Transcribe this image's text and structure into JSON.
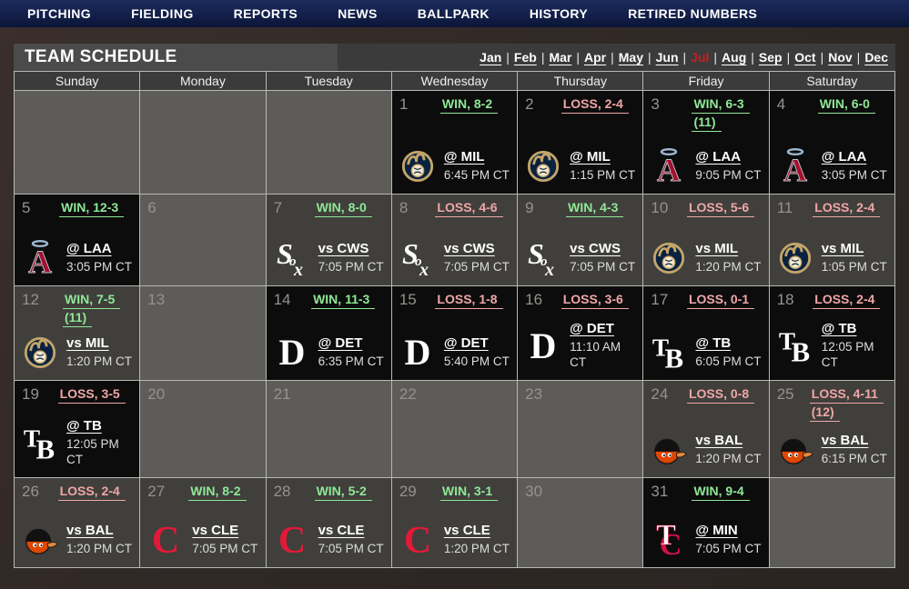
{
  "nav": {
    "items": [
      "PITCHING",
      "FIELDING",
      "REPORTS",
      "NEWS",
      "BALLPARK",
      "HISTORY",
      "RETIRED NUMBERS"
    ]
  },
  "schedule_header": {
    "title": "TEAM SCHEDULE",
    "months": [
      "Jan",
      "Feb",
      "Mar",
      "Apr",
      "May",
      "Jun",
      "Jul",
      "Aug",
      "Sep",
      "Oct",
      "Nov",
      "Dec"
    ],
    "active_month": "Jul",
    "separator": "|"
  },
  "colors": {
    "nav_bg": "#13204a",
    "win_text": "#8fe896",
    "loss_text": "#f0a6a6",
    "active_month": "#c32222",
    "away_cell_bg": "#0c0c0c",
    "home_cell_bg": "#403f3c",
    "empty_cell_bg": "#5d5c58"
  },
  "calendar": {
    "day_headers": [
      "Sunday",
      "Monday",
      "Tuesday",
      "Wednesday",
      "Thursday",
      "Friday",
      "Saturday"
    ],
    "weeks": [
      [
        {
          "day": ""
        },
        {
          "day": ""
        },
        {
          "day": ""
        },
        {
          "day": "1",
          "result": "WIN, 8-2",
          "result_type": "win",
          "team": "MIL",
          "opponent": "@ MIL",
          "time": "6:45 PM CT",
          "home": false
        },
        {
          "day": "2",
          "result": "LOSS, 2-4",
          "result_type": "loss",
          "team": "MIL",
          "opponent": "@ MIL",
          "time": "1:15 PM CT",
          "home": false
        },
        {
          "day": "3",
          "result": "WIN, 6-3",
          "extra": "(11)",
          "result_type": "win",
          "team": "LAA",
          "opponent": "@ LAA",
          "time": "9:05 PM CT",
          "home": false
        },
        {
          "day": "4",
          "result": "WIN, 6-0",
          "result_type": "win",
          "team": "LAA",
          "opponent": "@ LAA",
          "time": "3:05 PM CT",
          "home": false
        }
      ],
      [
        {
          "day": "5",
          "result": "WIN, 12-3",
          "result_type": "win",
          "team": "LAA",
          "opponent": "@ LAA",
          "time": "3:05 PM CT",
          "home": false
        },
        {
          "day": "6"
        },
        {
          "day": "7",
          "result": "WIN, 8-0",
          "result_type": "win",
          "team": "CWS",
          "opponent": "vs CWS",
          "time": "7:05 PM CT",
          "home": true
        },
        {
          "day": "8",
          "result": "LOSS, 4-6",
          "result_type": "loss",
          "team": "CWS",
          "opponent": "vs CWS",
          "time": "7:05 PM CT",
          "home": true
        },
        {
          "day": "9",
          "result": "WIN, 4-3",
          "result_type": "win",
          "team": "CWS",
          "opponent": "vs CWS",
          "time": "7:05 PM CT",
          "home": true
        },
        {
          "day": "10",
          "result": "LOSS, 5-6",
          "result_type": "loss",
          "team": "MIL",
          "opponent": "vs MIL",
          "time": "1:20 PM CT",
          "home": true
        },
        {
          "day": "11",
          "result": "LOSS, 2-4",
          "result_type": "loss",
          "team": "MIL",
          "opponent": "vs MIL",
          "time": "1:05 PM CT",
          "home": true
        }
      ],
      [
        {
          "day": "12",
          "result": "WIN, 7-5",
          "extra": "(11)",
          "result_type": "win",
          "team": "MIL",
          "opponent": "vs MIL",
          "time": "1:20 PM CT",
          "home": true
        },
        {
          "day": "13"
        },
        {
          "day": "14",
          "result": "WIN, 11-3",
          "result_type": "win",
          "team": "DET",
          "opponent": "@ DET",
          "time": "6:35 PM CT",
          "home": false
        },
        {
          "day": "15",
          "result": "LOSS, 1-8",
          "result_type": "loss",
          "team": "DET",
          "opponent": "@ DET",
          "time": "5:40 PM CT",
          "home": false
        },
        {
          "day": "16",
          "result": "LOSS, 3-6",
          "result_type": "loss",
          "team": "DET",
          "opponent": "@ DET",
          "time": "11:10 AM CT",
          "home": false
        },
        {
          "day": "17",
          "result": "LOSS, 0-1",
          "result_type": "loss",
          "team": "TB",
          "opponent": "@ TB",
          "time": "6:05 PM CT",
          "home": false
        },
        {
          "day": "18",
          "result": "LOSS, 2-4",
          "result_type": "loss",
          "team": "TB",
          "opponent": "@ TB",
          "time": "12:05 PM CT",
          "home": false
        }
      ],
      [
        {
          "day": "19",
          "result": "LOSS, 3-5",
          "result_type": "loss",
          "team": "TB",
          "opponent": "@ TB",
          "time": "12:05 PM CT",
          "home": false
        },
        {
          "day": "20"
        },
        {
          "day": "21"
        },
        {
          "day": "22"
        },
        {
          "day": "23"
        },
        {
          "day": "24",
          "result": "LOSS, 0-8",
          "result_type": "loss",
          "team": "BAL",
          "opponent": "vs BAL",
          "time": "1:20 PM CT",
          "home": true
        },
        {
          "day": "25",
          "result": "LOSS, 4-11",
          "extra": "(12)",
          "result_type": "loss",
          "team": "BAL",
          "opponent": "vs BAL",
          "time": "6:15 PM CT",
          "home": true
        }
      ],
      [
        {
          "day": "26",
          "result": "LOSS, 2-4",
          "result_type": "loss",
          "team": "BAL",
          "opponent": "vs BAL",
          "time": "1:20 PM CT",
          "home": true
        },
        {
          "day": "27",
          "result": "WIN, 8-2",
          "result_type": "win",
          "team": "CLE",
          "opponent": "vs CLE",
          "time": "7:05 PM CT",
          "home": true
        },
        {
          "day": "28",
          "result": "WIN, 5-2",
          "result_type": "win",
          "team": "CLE",
          "opponent": "vs CLE",
          "time": "7:05 PM CT",
          "home": true
        },
        {
          "day": "29",
          "result": "WIN, 3-1",
          "result_type": "win",
          "team": "CLE",
          "opponent": "vs CLE",
          "time": "1:20 PM CT",
          "home": true
        },
        {
          "day": "30"
        },
        {
          "day": "31",
          "result": "WIN, 9-4",
          "result_type": "win",
          "team": "MIN",
          "opponent": "@ MIN",
          "time": "7:05 PM CT",
          "home": false
        },
        {
          "day": ""
        }
      ]
    ]
  }
}
